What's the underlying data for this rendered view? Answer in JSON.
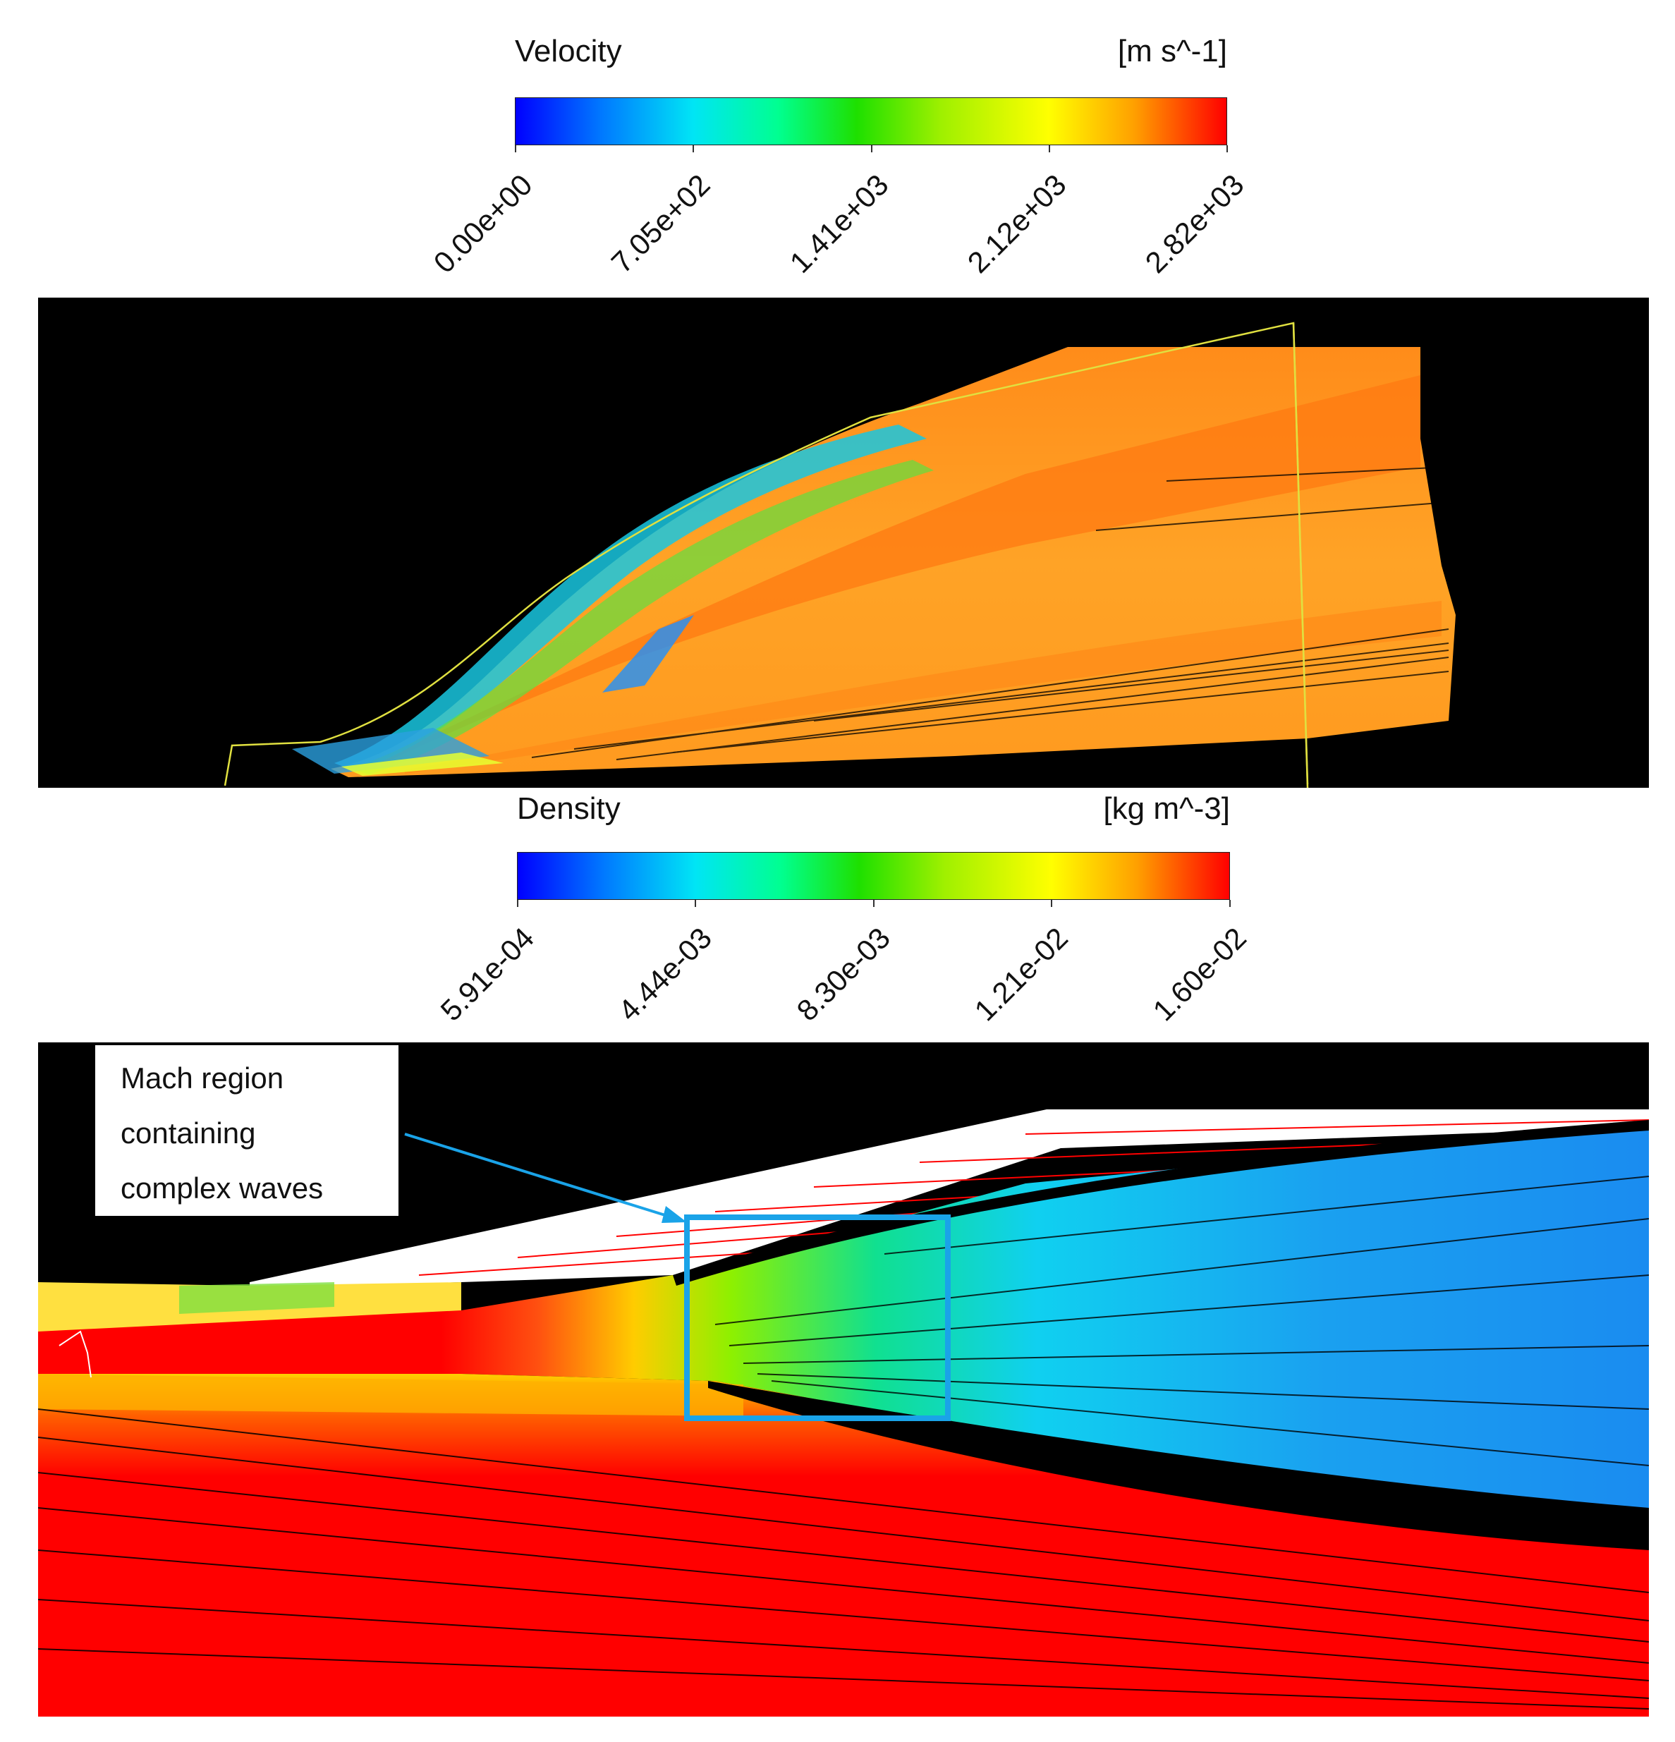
{
  "velocity_legend": {
    "title": "Velocity",
    "units": "[m s^-1]",
    "ticks": [
      "0.00e+00",
      "7.05e+02",
      "1.41e+03",
      "2.12e+03",
      "2.82e+03"
    ]
  },
  "density_legend": {
    "title": "Density",
    "units": "[kg m^-3]",
    "ticks": [
      "5.91e-04",
      "4.44e-03",
      "8.30e-03",
      "1.21e-02",
      "1.60e-02"
    ]
  },
  "annotation": {
    "lines": [
      "Mach region",
      "containing",
      "complex waves"
    ],
    "color": "#1aa3e8"
  },
  "colors": {
    "min": "#0000ff",
    "low": "#00e5f5",
    "mid": "#1ee000",
    "high": "#ffff00",
    "max": "#ff0000"
  }
}
